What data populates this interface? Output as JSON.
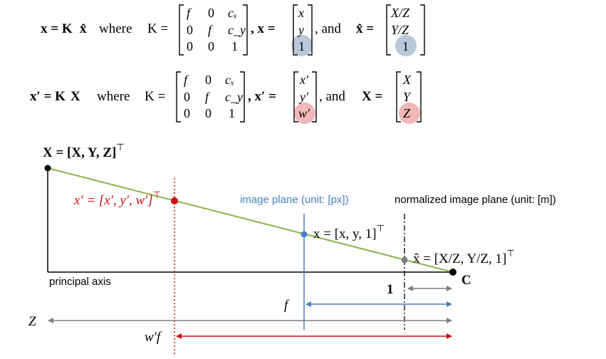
{
  "equations": {
    "eq1": {
      "lhs": "x = K",
      "lhs_hat": "x̂",
      "where": "where",
      "k_eq": "K =",
      "k_matrix": [
        [
          "f",
          "0",
          "cₓ"
        ],
        [
          "0",
          "f",
          "c_y"
        ],
        [
          "0",
          "0",
          "1"
        ]
      ],
      "x_eq": ", x =",
      "x_vec": [
        "x",
        "y",
        "1"
      ],
      "and": ", and",
      "xhat_eq": "x̂ =",
      "xhat_vec": [
        "X/Z",
        "Y/Z",
        "1"
      ]
    },
    "eq2": {
      "lhs": "x′ = K",
      "lhs_X": "X",
      "where": "where",
      "k_eq": "K =",
      "k_matrix": [
        [
          "f",
          "0",
          "cₓ"
        ],
        [
          "0",
          "f",
          "c_y"
        ],
        [
          "0",
          "0",
          "1"
        ]
      ],
      "xp_eq": ", x′ =",
      "xp_vec": [
        "x′",
        "y′",
        "w′"
      ],
      "and": ", and",
      "X_eq": "X =",
      "X_vec": [
        "X",
        "Y",
        "Z"
      ]
    }
  },
  "diagram": {
    "point_X": "X = [X, Y, Z]",
    "point_xp": "x′ = [x′, y′, w′]",
    "point_x": "x = [x, y, 1]",
    "point_xhat": "x̂ = [X/Z, Y/Z, 1]",
    "transpose": "⊤",
    "camera_center": "C",
    "image_plane": "image plane (unit: [px])",
    "normalized_plane": "normalized image plane (unit: [m])",
    "principal_axis": "principal axis",
    "unit_one": "1",
    "f_label": "f",
    "Z_label": "Z",
    "wf_label": "w′f"
  },
  "colors": {
    "green": "#8db34a",
    "blue": "#4a7fc1",
    "red": "#cc1111",
    "gray": "#7f7f7f",
    "blue_circle": "#b9c9da",
    "red_circle": "#f2b8b8"
  }
}
